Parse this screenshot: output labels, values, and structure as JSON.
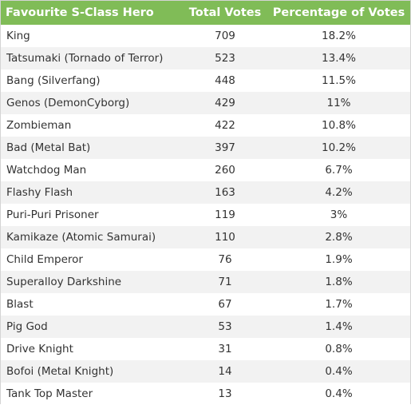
{
  "header": {
    "col_hero": "Favourite S-Class Hero",
    "col_votes": "Total Votes",
    "col_pct": "Percentage of Votes"
  },
  "colors": {
    "header_bg": "#80bc57",
    "header_text": "#ffffff",
    "row_alt": "#f2f2f2"
  },
  "rows": [
    {
      "hero": "King",
      "votes": "709",
      "pct": "18.2%"
    },
    {
      "hero": "Tatsumaki (Tornado of Terror)",
      "votes": "523",
      "pct": "13.4%"
    },
    {
      "hero": "Bang (Silverfang)",
      "votes": "448",
      "pct": "11.5%"
    },
    {
      "hero": "Genos (DemonCyborg)",
      "votes": "429",
      "pct": "11%"
    },
    {
      "hero": "Zombieman",
      "votes": "422",
      "pct": "10.8%"
    },
    {
      "hero": "Bad (Metal Bat)",
      "votes": "397",
      "pct": "10.2%"
    },
    {
      "hero": "Watchdog Man",
      "votes": "260",
      "pct": "6.7%"
    },
    {
      "hero": "Flashy Flash",
      "votes": "163",
      "pct": "4.2%"
    },
    {
      "hero": "Puri-Puri Prisoner",
      "votes": "119",
      "pct": "3%"
    },
    {
      "hero": "Kamikaze (Atomic Samurai)",
      "votes": "110",
      "pct": "2.8%"
    },
    {
      "hero": "Child Emperor",
      "votes": "76",
      "pct": "1.9%"
    },
    {
      "hero": "Superalloy Darkshine",
      "votes": "71",
      "pct": "1.8%"
    },
    {
      "hero": "Blast",
      "votes": "67",
      "pct": "1.7%"
    },
    {
      "hero": "Pig God",
      "votes": "53",
      "pct": "1.4%"
    },
    {
      "hero": "Drive Knight",
      "votes": "31",
      "pct": "0.8%"
    },
    {
      "hero": "Bofoi (Metal Knight)",
      "votes": "14",
      "pct": "0.4%"
    },
    {
      "hero": "Tank Top Master",
      "votes": "13",
      "pct": "0.4%"
    }
  ]
}
